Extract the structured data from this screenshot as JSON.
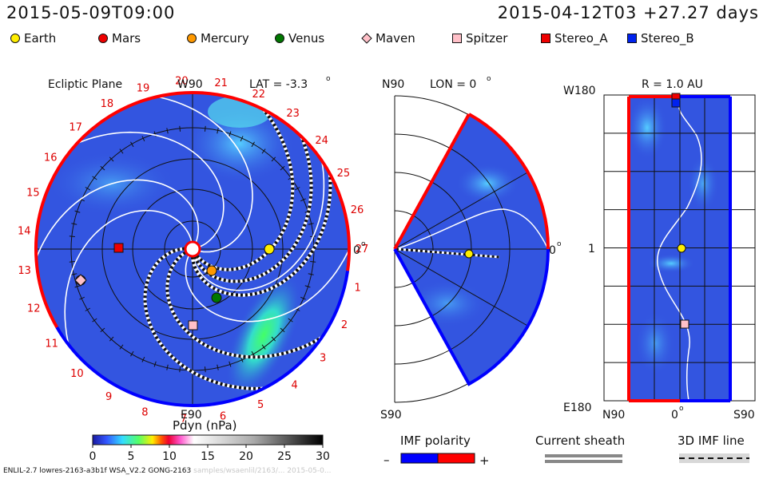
{
  "header": {
    "left": "2015-05-09T09:00",
    "right": "2015-04-12T03 +27.27 days"
  },
  "legend": [
    {
      "label": "Earth",
      "color": "#ffee00",
      "shape": "circle"
    },
    {
      "label": "Mars",
      "color": "#ee0000",
      "shape": "circle"
    },
    {
      "label": "Mercury",
      "color": "#ff9900",
      "shape": "circle"
    },
    {
      "label": "Venus",
      "color": "#007700",
      "shape": "circle"
    },
    {
      "label": "Maven",
      "color": "#ffc0c8",
      "shape": "diamond"
    },
    {
      "label": "Spitzer",
      "color": "#ffc0c8",
      "shape": "square"
    },
    {
      "label": "Stereo_A",
      "color": "#ee0000",
      "shape": "square"
    },
    {
      "label": "Stereo_B",
      "color": "#0022ee",
      "shape": "square"
    }
  ],
  "ecliptic": {
    "title": "Ecliptic Plane",
    "top_label": "W90",
    "bottom_label": "E90",
    "lat_label": "LAT = -3.3",
    "zero_label": "0",
    "sectors": [
      "1",
      "2",
      "3",
      "4",
      "5",
      "6",
      "7",
      "8",
      "9",
      "10",
      "11",
      "12",
      "13",
      "14",
      "15",
      "16",
      "17",
      "18",
      "19",
      "20",
      "21",
      "22",
      "23",
      "24",
      "25",
      "26",
      "27"
    ]
  },
  "meridional": {
    "top_label": "N90",
    "bottom_label": "S90",
    "lon_label": "LON = 0",
    "zero_label": "0"
  },
  "cylinder": {
    "r_label": "R = 1.0 AU",
    "top_label": "W180",
    "bottom_label": "E180",
    "mid_label": "1",
    "x_left": "N90",
    "x_mid": "0",
    "x_right": "S90"
  },
  "colorbar": {
    "title": "Pdyn (nPa)",
    "ticks": [
      "0",
      "5",
      "10",
      "15",
      "20",
      "25",
      "30"
    ]
  },
  "imf": {
    "title": "IMF polarity",
    "minus": "–",
    "plus": "+"
  },
  "sheath": {
    "title": "Current sheath"
  },
  "imf3d": {
    "title": "3D IMF line"
  },
  "footer": {
    "main": "ENLIL-2.7 lowres-2163-a3b1f WSA_V2.2 GONG-2163",
    "faint": "samples/wsaenlil/2163/... 2015-05-0..."
  },
  "colors": {
    "bg_blue": "#3355e0",
    "red": "#ff0000",
    "blue": "#0000ff"
  }
}
